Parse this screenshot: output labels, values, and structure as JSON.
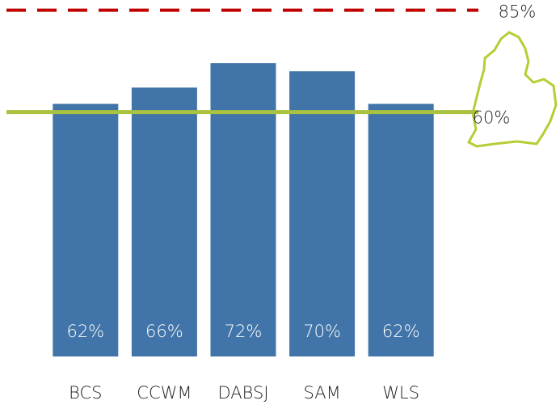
{
  "chart_data": {
    "type": "bar",
    "categories": [
      "BCS",
      "CCWM",
      "DABSJ",
      "SAM",
      "WLS"
    ],
    "values": [
      62,
      66,
      72,
      70,
      62
    ],
    "value_labels": [
      "62%",
      "66%",
      "72%",
      "70%",
      "62%"
    ],
    "color": "#4174a8",
    "ylim": [
      0,
      87.5
    ],
    "reference_lines": [
      {
        "value": 85,
        "label": "85%",
        "color": "#c00000",
        "style": "dashed"
      },
      {
        "value": 60,
        "label": "60%",
        "color": "#a9c23f",
        "style": "solid"
      }
    ]
  }
}
